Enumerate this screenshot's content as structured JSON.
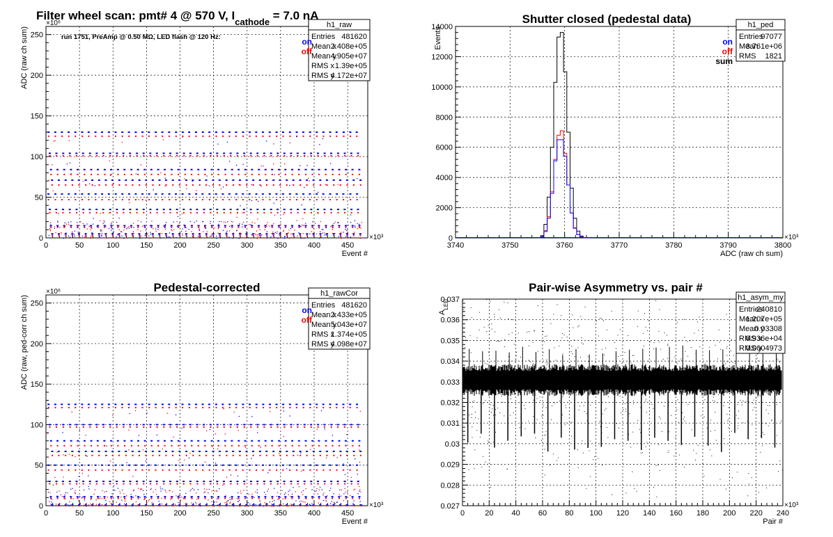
{
  "chart_data": [
    {
      "id": "raw",
      "type": "scatter",
      "title": "Filter wheel scan: pmt#   4 @   570 V, I",
      "title_sub": "cathode",
      "title_tail": " = 7.0 nA",
      "note": "run 1751, PreAmp @ 0.50 MΩ, LED flash @  120 Hz:",
      "xlabel": "Event #",
      "ylabel": "ADC (raw ch sum)",
      "xlim": [
        0,
        480000
      ],
      "ylim": [
        0,
        260000000
      ],
      "x_exponent": "×10³",
      "y_exponent": "×10⁶",
      "xticks": [
        0,
        50,
        100,
        150,
        200,
        250,
        300,
        350,
        400,
        450
      ],
      "yticks": [
        0,
        50,
        100,
        150,
        200,
        250
      ],
      "grid": true,
      "legend": [
        {
          "name": "on",
          "color": "#0000ff"
        },
        {
          "name": "off",
          "color": "#ff0000"
        }
      ],
      "stats": {
        "title": "h1_raw",
        "rows": [
          [
            "Entries",
            "481620"
          ],
          [
            "Mean x",
            "2.408e+05"
          ],
          [
            "Mean y",
            "4.905e+07"
          ],
          [
            "RMS x",
            "1.39e+05"
          ],
          [
            "RMS y",
            "4.172e+07"
          ]
        ]
      },
      "plateaus_on": [
        130,
        104,
        84,
        71,
        54,
        35,
        15,
        5
      ],
      "plateaus_off": [
        125,
        101,
        78,
        65,
        47,
        31,
        13,
        3
      ]
    },
    {
      "id": "ped",
      "type": "histogram",
      "title": "Shutter closed (pedestal data)",
      "xlabel": "ADC (raw ch sum)",
      "ylabel": "Events",
      "xlim": [
        3740000,
        3800000
      ],
      "ylim": [
        0,
        14000
      ],
      "x_exponent": "×10³",
      "xticks": [
        3740,
        3750,
        3760,
        3770,
        3780,
        3790,
        3800
      ],
      "yticks": [
        0,
        2000,
        4000,
        6000,
        8000,
        10000,
        12000,
        14000
      ],
      "grid": true,
      "legend": [
        {
          "name": "on",
          "color": "#0000ff"
        },
        {
          "name": "off",
          "color": "#ff0000"
        },
        {
          "name": "sum",
          "color": "#000000"
        }
      ],
      "stats": {
        "title": "h1_ped",
        "rows": [
          [
            "Entries",
            "97077"
          ],
          [
            "Mean",
            "3.761e+06"
          ],
          [
            "RMS",
            "1821"
          ]
        ]
      },
      "bin_width": 600,
      "bin_start": 3755000,
      "sum_values": [
        0,
        150,
        900,
        2700,
        6000,
        10300,
        13300,
        13600,
        11000,
        7000,
        3300,
        1300,
        450,
        120,
        20,
        0
      ],
      "on_values": [
        0,
        70,
        420,
        1300,
        2950,
        5100,
        6500,
        6500,
        5400,
        3500,
        1650,
        640,
        220,
        60,
        10,
        0
      ],
      "off_values": [
        0,
        80,
        480,
        1400,
        3050,
        5200,
        6800,
        7100,
        5600,
        3500,
        1650,
        660,
        230,
        60,
        10,
        0
      ]
    },
    {
      "id": "cor",
      "type": "scatter",
      "title": "Pedestal-corrected",
      "xlabel": "Event #",
      "ylabel": "ADC (raw, ped-corr ch sum)",
      "xlim": [
        0,
        480000
      ],
      "ylim": [
        0,
        260000000
      ],
      "x_exponent": "×10³",
      "y_exponent": "×10⁶",
      "xticks": [
        0,
        50,
        100,
        150,
        200,
        250,
        300,
        350,
        400,
        450
      ],
      "yticks": [
        0,
        50,
        100,
        150,
        200,
        250
      ],
      "grid": true,
      "legend": [
        {
          "name": "on",
          "color": "#0000ff"
        },
        {
          "name": "off",
          "color": "#ff0000"
        }
      ],
      "stats": {
        "title": "h1_rawCor",
        "rows": [
          [
            "Entries",
            "481620"
          ],
          [
            "Mean x",
            "2.433e+05"
          ],
          [
            "Mean y",
            "5.043e+07"
          ],
          [
            "RMS x",
            "1.374e+05"
          ],
          [
            "RMS y",
            "4.098e+07"
          ]
        ]
      },
      "plateaus_on": [
        125,
        100,
        80,
        67,
        50,
        30,
        11,
        1
      ],
      "plateaus_off": [
        121,
        97,
        74,
        62,
        44,
        27,
        9,
        0
      ]
    },
    {
      "id": "asym",
      "type": "scatter",
      "title": "Pair-wise Asymmetry vs. pair #",
      "xlabel": "Pair #",
      "ylabel": "A",
      "ylabel_sub": "LED",
      "xlim": [
        0,
        240000
      ],
      "ylim": [
        0.027,
        0.037
      ],
      "x_exponent": "×10³",
      "xticks": [
        0,
        20,
        40,
        60,
        80,
        100,
        120,
        140,
        160,
        180,
        200,
        220,
        240
      ],
      "yticks": [
        0.027,
        0.028,
        0.029,
        0.03,
        0.031,
        0.032,
        0.033,
        0.034,
        0.035,
        0.036,
        0.037
      ],
      "ytick_labels": [
        "0.027",
        "0.028",
        "0.029",
        "0.03",
        "0.031",
        "0.032",
        "0.033",
        "0.034",
        "0.035",
        "0.036",
        "0.037"
      ],
      "grid": true,
      "stats": {
        "title": "h1_asym_my",
        "rows": [
          [
            "Entries",
            "240810"
          ],
          [
            "Mean x",
            "1.207e+05"
          ],
          [
            "Mean y",
            "0.03308"
          ],
          [
            "RMS x",
            "6.936e+04"
          ],
          [
            "RMS y",
            "0.0004973"
          ]
        ]
      },
      "band_center": 0.03308,
      "band_halfwidth": 0.00055
    }
  ]
}
